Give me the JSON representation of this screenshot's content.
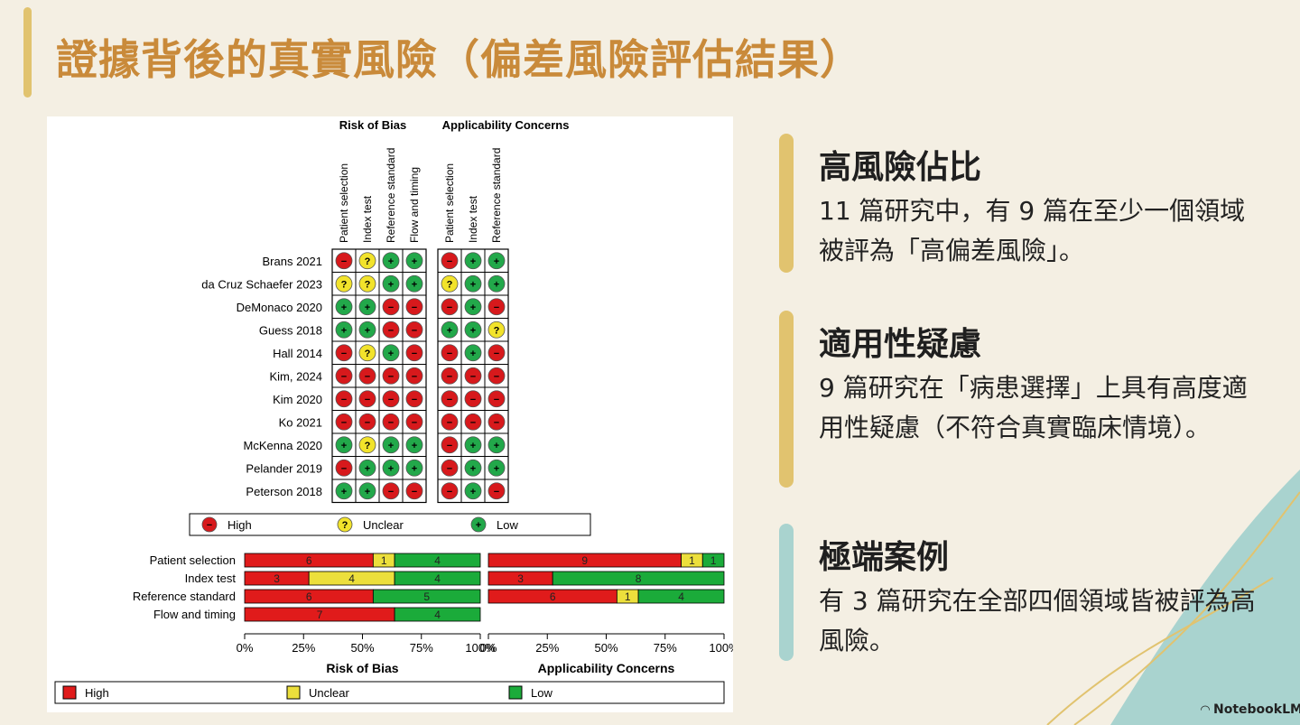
{
  "slide": {
    "title": "證據背後的真實風險（偏差風險評估結果）",
    "brand": "NotebookLM"
  },
  "cards": [
    {
      "heading": "高風險佔比",
      "body": "11 篇研究中，有 9 篇在至少一個領域被評為「高偏差風險」。",
      "bar_color": "#e1c36f"
    },
    {
      "heading": "適用性疑慮",
      "body": "9 篇研究在「病患選擇」上具有高度適用性疑慮（不符合真實臨床情境）。",
      "bar_color": "#e1c36f"
    },
    {
      "heading": "極端案例",
      "body": "有 3 篇研究在全部四個領域皆被評為高風險。",
      "bar_color": "#a9d3cf"
    }
  ],
  "figure": {
    "rob_title": "Risk of Bias",
    "ac_title": "Applicability Concerns",
    "rob_cols": [
      "Patient selection",
      "Index test",
      "Reference standard",
      "Flow and timing"
    ],
    "ac_cols": [
      "Patient selection",
      "Index test",
      "Reference standard"
    ],
    "studies": [
      {
        "name": "Brans 2021",
        "rob": [
          "H",
          "U",
          "L",
          "L"
        ],
        "ac": [
          "H",
          "L",
          "L"
        ]
      },
      {
        "name": "da Cruz Schaefer 2023",
        "rob": [
          "U",
          "U",
          "L",
          "L"
        ],
        "ac": [
          "U",
          "L",
          "L"
        ]
      },
      {
        "name": "DeMonaco 2020",
        "rob": [
          "L",
          "L",
          "H",
          "H"
        ],
        "ac": [
          "H",
          "L",
          "H"
        ]
      },
      {
        "name": "Guess 2018",
        "rob": [
          "L",
          "L",
          "H",
          "H"
        ],
        "ac": [
          "L",
          "L",
          "U"
        ]
      },
      {
        "name": "Hall 2014",
        "rob": [
          "H",
          "U",
          "L",
          "H"
        ],
        "ac": [
          "H",
          "L",
          "H"
        ]
      },
      {
        "name": "Kim, 2024",
        "rob": [
          "H",
          "H",
          "H",
          "H"
        ],
        "ac": [
          "H",
          "H",
          "H"
        ]
      },
      {
        "name": "Kim 2020",
        "rob": [
          "H",
          "H",
          "H",
          "H"
        ],
        "ac": [
          "H",
          "H",
          "H"
        ]
      },
      {
        "name": "Ko 2021",
        "rob": [
          "H",
          "H",
          "H",
          "H"
        ],
        "ac": [
          "H",
          "H",
          "H"
        ]
      },
      {
        "name": "McKenna 2020",
        "rob": [
          "L",
          "U",
          "L",
          "L"
        ],
        "ac": [
          "H",
          "L",
          "L"
        ]
      },
      {
        "name": "Pelander 2019",
        "rob": [
          "H",
          "L",
          "L",
          "L"
        ],
        "ac": [
          "H",
          "L",
          "L"
        ]
      },
      {
        "name": "Peterson 2018",
        "rob": [
          "L",
          "L",
          "H",
          "H"
        ],
        "ac": [
          "H",
          "L",
          "H"
        ]
      }
    ],
    "symbol_legend": [
      {
        "key": "H",
        "label": "High"
      },
      {
        "key": "U",
        "label": "Unclear"
      },
      {
        "key": "L",
        "label": "Low"
      }
    ],
    "symbol_glyphs": {
      "H": "−",
      "U": "?",
      "L": "+"
    },
    "colors": {
      "H": "#d7191c",
      "U": "#f2e32b",
      "L": "#22a84a",
      "bar_H": "#e01b1b",
      "bar_U": "#ecdf3c",
      "bar_L": "#1bab3a"
    },
    "bar_legend": [
      {
        "key": "H",
        "label": "High"
      },
      {
        "key": "U",
        "label": "Unclear"
      },
      {
        "key": "L",
        "label": "Low"
      }
    ],
    "x_ticks": [
      "0%",
      "25%",
      "50%",
      "75%",
      "100%"
    ]
  },
  "chart_data": [
    {
      "type": "bar",
      "title": "Risk of Bias",
      "stacked": true,
      "orientation": "horizontal",
      "categories": [
        "Patient selection",
        "Index test",
        "Reference standard",
        "Flow and timing"
      ],
      "series": [
        {
          "name": "High",
          "values": [
            6,
            3,
            6,
            7
          ]
        },
        {
          "name": "Unclear",
          "values": [
            1,
            4,
            0,
            0
          ]
        },
        {
          "name": "Low",
          "values": [
            4,
            4,
            5,
            4
          ]
        }
      ],
      "xlim": [
        0,
        100
      ]
    },
    {
      "type": "bar",
      "title": "Applicability Concerns",
      "stacked": true,
      "orientation": "horizontal",
      "categories": [
        "Patient selection",
        "Index test",
        "Reference standard"
      ],
      "series": [
        {
          "name": "High",
          "values": [
            9,
            3,
            6
          ]
        },
        {
          "name": "Unclear",
          "values": [
            1,
            0,
            1
          ]
        },
        {
          "name": "Low",
          "values": [
            1,
            8,
            4
          ]
        }
      ],
      "xlim": [
        0,
        100
      ]
    }
  ]
}
